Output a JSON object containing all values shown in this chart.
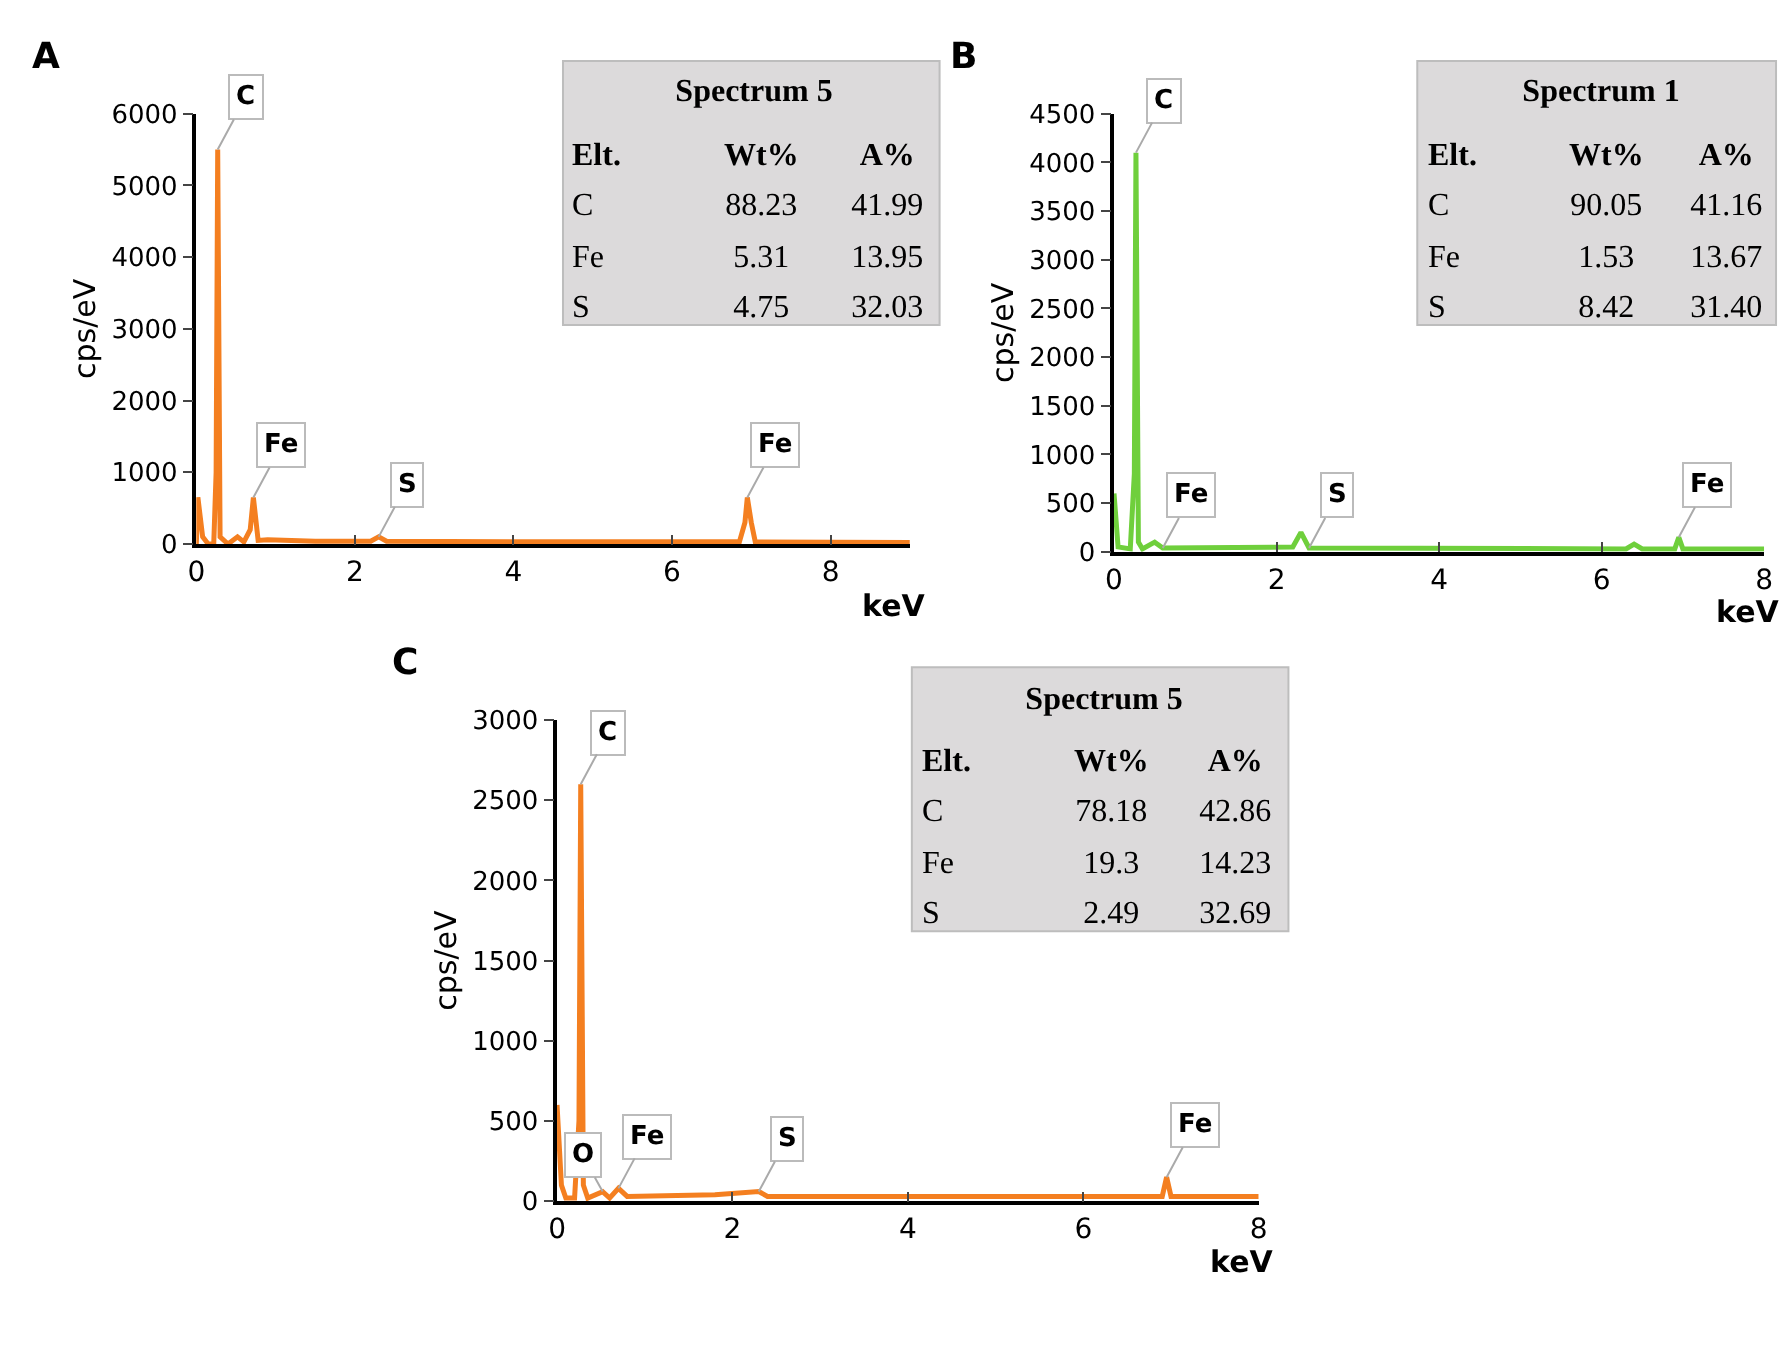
{
  "chart_data": [
    {
      "type": "line",
      "title": "A",
      "xlabel": "keV",
      "ylabel": "cps/eV",
      "x": [
        0,
        0.02,
        0.08,
        0.15,
        0.22,
        0.25,
        0.27,
        0.3,
        0.4,
        0.52,
        0.6,
        0.68,
        0.72,
        0.78,
        0.9,
        1.5,
        2.2,
        2.3,
        2.4,
        4,
        6.85,
        6.92,
        6.95,
        7.0,
        7.05,
        9
      ],
      "series": [
        {
          "color": "#f47f20",
          "values": [
            0,
            650,
            100,
            0,
            0,
            1000,
            5500,
            100,
            0,
            100,
            30,
            200,
            650,
            50,
            60,
            40,
            40,
            100,
            40,
            30,
            30,
            300,
            650,
            300,
            30,
            20
          ]
        }
      ],
      "xlim": [
        0,
        9
      ],
      "xticks": [
        0,
        2,
        4,
        6,
        8
      ],
      "ylim": [
        0,
        6000
      ],
      "yticks": [
        0,
        1000,
        2000,
        3000,
        4000,
        5000,
        6000
      ],
      "annotations": [
        {
          "text": "C",
          "x": 0.27,
          "y": 5500
        },
        {
          "text": "Fe",
          "x": 0.72,
          "y": 650
        },
        {
          "text": "S",
          "x": 2.3,
          "y": 100
        },
        {
          "text": "Fe",
          "x": 6.95,
          "y": 650
        },
        "Spectrum 5",
        "Elt.",
        "Wt%",
        "A%",
        "C",
        "88.23",
        "41.99",
        "Fe",
        "5.31",
        "13.95",
        "S",
        "4.75",
        "32.03"
      ]
    },
    {
      "type": "line",
      "title": "B",
      "xlabel": "keV",
      "ylabel": "cps/eV",
      "x": [
        0,
        0.05,
        0.2,
        0.25,
        0.27,
        0.3,
        0.35,
        0.5,
        0.6,
        2.2,
        2.3,
        2.4,
        6.3,
        6.4,
        6.5,
        6.9,
        6.95,
        7.0,
        8
      ],
      "series": [
        {
          "color": "#6fcf3c",
          "values": [
            600,
            50,
            30,
            800,
            4100,
            100,
            30,
            100,
            40,
            50,
            200,
            40,
            30,
            80,
            30,
            30,
            150,
            30,
            30
          ]
        }
      ],
      "xlim": [
        0,
        8
      ],
      "xticks": [
        0,
        2,
        4,
        6,
        8
      ],
      "ylim": [
        0,
        4500
      ],
      "yticks": [
        0,
        500,
        1000,
        1500,
        2000,
        2500,
        3000,
        3500,
        4000,
        4500
      ],
      "annotations": [
        {
          "text": "C",
          "x": 0.27,
          "y": 4100
        },
        {
          "text": "Fe",
          "x": 0.6,
          "y": 40
        },
        {
          "text": "S",
          "x": 2.4,
          "y": 40
        },
        {
          "text": "Fe",
          "x": 6.95,
          "y": 150
        },
        "Spectrum 1",
        "Elt.",
        "Wt%",
        "A%",
        "C",
        "90.05",
        "41.16",
        "Fe",
        "1.53",
        "13.67",
        "S",
        "8.42",
        "31.40"
      ]
    },
    {
      "type": "line",
      "title": "C",
      "xlabel": "keV",
      "ylabel": "cps/eV",
      "x": [
        0,
        0.05,
        0.1,
        0.2,
        0.25,
        0.27,
        0.3,
        0.35,
        0.52,
        0.6,
        0.7,
        0.8,
        1.8,
        2.3,
        2.4,
        6.9,
        6.95,
        7.0,
        8
      ],
      "series": [
        {
          "color": "#f47f20",
          "values": [
            600,
            100,
            20,
            20,
            500,
            2600,
            100,
            20,
            60,
            20,
            80,
            30,
            40,
            60,
            30,
            30,
            150,
            30,
            30
          ]
        }
      ],
      "xlim": [
        0,
        8
      ],
      "xticks": [
        0,
        2,
        4,
        6,
        8
      ],
      "ylim": [
        0,
        3000
      ],
      "yticks": [
        0,
        500,
        1000,
        1500,
        2000,
        2500,
        3000
      ],
      "annotations": [
        {
          "text": "C",
          "x": 0.27,
          "y": 2600
        },
        {
          "text": "O",
          "x": 0.52,
          "y": 60
        },
        {
          "text": "Fe",
          "x": 0.7,
          "y": 80
        },
        {
          "text": "S",
          "x": 2.3,
          "y": 60
        },
        {
          "text": "Fe",
          "x": 6.95,
          "y": 150
        },
        "Spectrum 5",
        "Elt.",
        "Wt%",
        "A%",
        "C",
        "78.18",
        "42.86",
        "Fe",
        "19.3",
        "14.23",
        "S",
        "2.49",
        "32.69"
      ]
    }
  ]
}
